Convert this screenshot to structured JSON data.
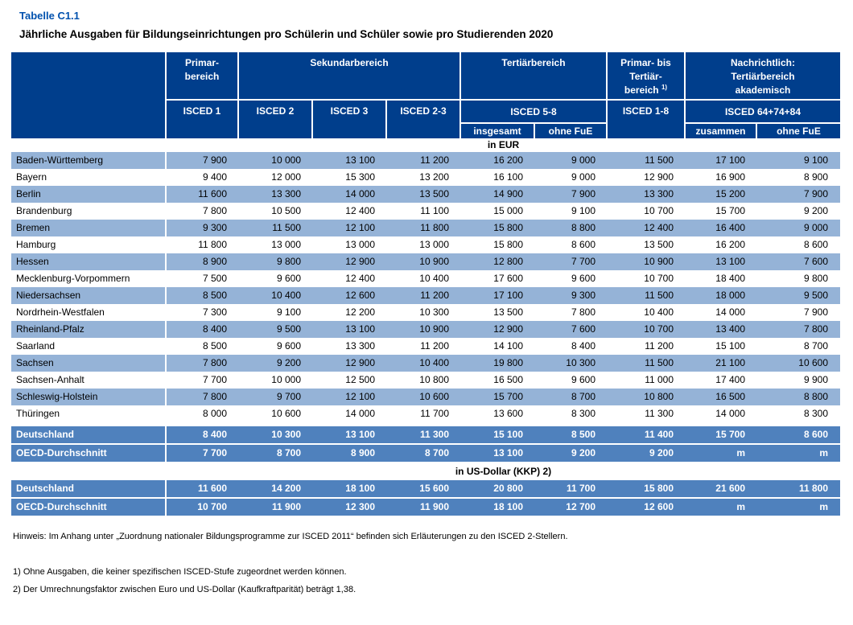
{
  "colors": {
    "title-blue": "#0051AE",
    "header-navy": "#003E8C",
    "summary-blue": "#4F81BD",
    "stripe-blue": "#95B3D7"
  },
  "title": "Tabelle C1.1",
  "subtitle": "Jährliche Ausgaben für Bildungseinrichtungen pro Schülerin und Schüler sowie pro Studierenden 2020",
  "header": {
    "groups": [
      {
        "lines": [
          "Primar-",
          "bereich"
        ]
      },
      {
        "lines": [
          "Sekundarbereich"
        ]
      },
      {
        "lines": [
          "Tertiärbereich"
        ]
      },
      {
        "lines": [
          "Primar- bis",
          "Tertiär-",
          "bereich "
        ],
        "sup": "1)"
      },
      {
        "lines": [
          "Nachrichtlich:",
          "Tertiärbereich",
          "akademisch"
        ]
      }
    ],
    "isced_labels": [
      "ISCED 1",
      "ISCED 2",
      "ISCED 3",
      "ISCED 2-3",
      "ISCED 5-8",
      "ISCED 1-8",
      "ISCED 64+74+84"
    ],
    "sub_labels": [
      "insgesamt",
      "ohne FuE",
      "zusammen",
      "ohne FuE"
    ]
  },
  "sections": [
    {
      "label": "in EUR",
      "rows": [
        {
          "name": "Baden-Württemberg",
          "kind": "stripe",
          "values": [
            "7 900",
            "10 000",
            "13 100",
            "11 200",
            "16 200",
            "9 000",
            "11 500",
            "17 100",
            "9 100"
          ]
        },
        {
          "name": "Bayern",
          "kind": "",
          "values": [
            "9 400",
            "12 000",
            "15 300",
            "13 200",
            "16 100",
            "9 000",
            "12 900",
            "16 900",
            "8 900"
          ]
        },
        {
          "name": "Berlin",
          "kind": "stripe",
          "values": [
            "11 600",
            "13 300",
            "14 000",
            "13 500",
            "14 900",
            "7 900",
            "13 300",
            "15 200",
            "7 900"
          ]
        },
        {
          "name": "Brandenburg",
          "kind": "",
          "values": [
            "7 800",
            "10 500",
            "12 400",
            "11 100",
            "15 000",
            "9 100",
            "10 700",
            "15 700",
            "9 200"
          ]
        },
        {
          "name": "Bremen",
          "kind": "stripe",
          "values": [
            "9 300",
            "11 500",
            "12 100",
            "11 800",
            "15 800",
            "8 800",
            "12 400",
            "16 400",
            "9 000"
          ]
        },
        {
          "name": "Hamburg",
          "kind": "",
          "values": [
            "11 800",
            "13 000",
            "13 000",
            "13 000",
            "15 800",
            "8 600",
            "13 500",
            "16 200",
            "8 600"
          ]
        },
        {
          "name": "Hessen",
          "kind": "stripe",
          "values": [
            "8 900",
            "9 800",
            "12 900",
            "10 900",
            "12 800",
            "7 700",
            "10 900",
            "13 100",
            "7 600"
          ]
        },
        {
          "name": "Mecklenburg-Vorpommern",
          "kind": "",
          "values": [
            "7 500",
            "9 600",
            "12 400",
            "10 400",
            "17 600",
            "9 600",
            "10 700",
            "18 400",
            "9 800"
          ]
        },
        {
          "name": "Niedersachsen",
          "kind": "stripe",
          "values": [
            "8 500",
            "10 400",
            "12 600",
            "11 200",
            "17 100",
            "9 300",
            "11 500",
            "18 000",
            "9 500"
          ]
        },
        {
          "name": "Nordrhein-Westfalen",
          "kind": "",
          "values": [
            "7 300",
            "9 100",
            "12 200",
            "10 300",
            "13 500",
            "7 800",
            "10 400",
            "14 000",
            "7 900"
          ]
        },
        {
          "name": "Rheinland-Pfalz",
          "kind": "stripe",
          "values": [
            "8 400",
            "9 500",
            "13 100",
            "10 900",
            "12 900",
            "7 600",
            "10 700",
            "13 400",
            "7 800"
          ]
        },
        {
          "name": "Saarland",
          "kind": "",
          "values": [
            "8 500",
            "9 600",
            "13 300",
            "11 200",
            "14 100",
            "8 400",
            "11 200",
            "15 100",
            "8 700"
          ]
        },
        {
          "name": "Sachsen",
          "kind": "stripe",
          "values": [
            "7 800",
            "9 200",
            "12 900",
            "10 400",
            "19 800",
            "10 300",
            "11 500",
            "21 100",
            "10 600"
          ]
        },
        {
          "name": "Sachsen-Anhalt",
          "kind": "",
          "values": [
            "7 700",
            "10 000",
            "12 500",
            "10 800",
            "16 500",
            "9 600",
            "11 000",
            "17 400",
            "9 900"
          ]
        },
        {
          "name": "Schleswig-Holstein",
          "kind": "stripe",
          "values": [
            "7 800",
            "9 700",
            "12 100",
            "10 600",
            "15 700",
            "8 700",
            "10 800",
            "16 500",
            "8 800"
          ]
        },
        {
          "name": "Thüringen",
          "kind": "",
          "values": [
            "8 000",
            "10 600",
            "14 000",
            "11 700",
            "13 600",
            "8 300",
            "11 300",
            "14 000",
            "8 300"
          ]
        },
        {
          "name": "Deutschland",
          "kind": "summary gap-top",
          "values": [
            "8 400",
            "10 300",
            "13 100",
            "11 300",
            "15 100",
            "8 500",
            "11 400",
            "15 700",
            "8 600"
          ]
        },
        {
          "name": "OECD-Durchschnitt",
          "kind": "summary",
          "values": [
            "7 700",
            "8 700",
            "8 900",
            "8 700",
            "13 100",
            "9 200",
            "9 200",
            "m",
            "m"
          ]
        }
      ]
    },
    {
      "label": "in US-Dollar (KKP) 2)",
      "rows": [
        {
          "name": "Deutschland",
          "kind": "summary",
          "values": [
            "11 600",
            "14 200",
            "18 100",
            "15 600",
            "20 800",
            "11 700",
            "15 800",
            "21 600",
            "11 800"
          ]
        },
        {
          "name": "OECD-Durchschnitt",
          "kind": "summary",
          "values": [
            "10 700",
            "11 900",
            "12 300",
            "11 900",
            "18 100",
            "12 700",
            "12 600",
            "m",
            "m"
          ]
        }
      ]
    }
  ],
  "notes": {
    "hinweis": "Hinweis: Im Anhang unter „Zuordnung nationaler Bildungsprogramme zur ISCED 2011“ befinden sich Erläuterungen zu den ISCED 2-Stellern.",
    "fn1": "1) Ohne Ausgaben, die keiner spezifischen ISCED-Stufe zugeordnet werden können.",
    "fn2": "2) Der Umrechnungsfaktor zwischen Euro und US-Dollar (Kaufkraftparität) beträgt 1,38."
  }
}
